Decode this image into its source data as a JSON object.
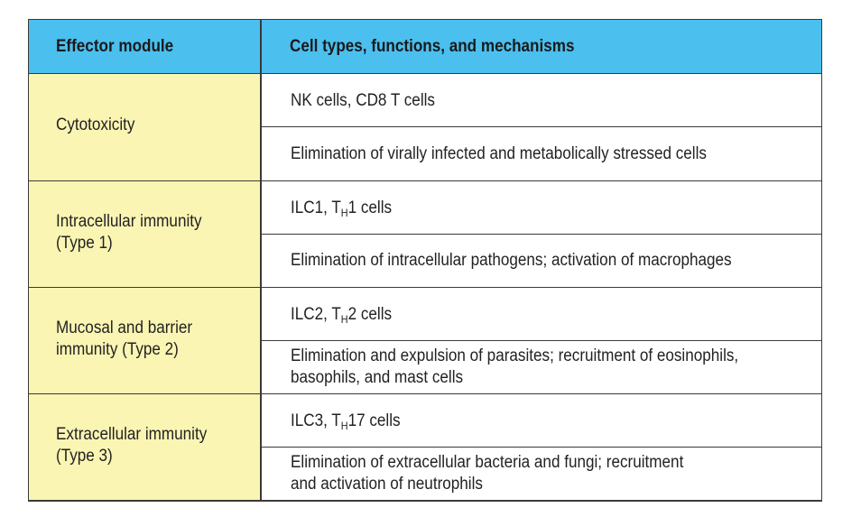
{
  "table": {
    "header": {
      "col1": "Effector module",
      "col2": "Cell types, functions, and mechanisms"
    },
    "rows": [
      {
        "module": "Cytotoxicity",
        "cells_text": "NK cells, CD8 T cells",
        "function": "Elimination of virally infected and metabolically stressed cells"
      },
      {
        "module": "Intracellular immunity\n(Type 1)",
        "cells_prefix": "ILC1, T",
        "cells_sub": "H",
        "cells_suffix": "1 cells",
        "function": "Elimination of intracellular pathogens; activation of macrophages"
      },
      {
        "module": "Mucosal and barrier\nimmunity (Type 2)",
        "cells_prefix": "ILC2, T",
        "cells_sub": "H",
        "cells_suffix": "2 cells",
        "function": "Elimination and expulsion of parasites; recruitment of eosinophils,\nbasophils, and mast cells"
      },
      {
        "module": "Extracellular immunity\n(Type 3)",
        "cells_prefix": "ILC3, T",
        "cells_sub": "H",
        "cells_suffix": "17 cells",
        "function": "Elimination of extracellular bacteria and fungi; recruitment\nand activation of neutrophils"
      }
    ],
    "colors": {
      "header_bg": "#4bbfee",
      "module_bg": "#fbf5b3",
      "border": "#3a3a3a"
    }
  }
}
